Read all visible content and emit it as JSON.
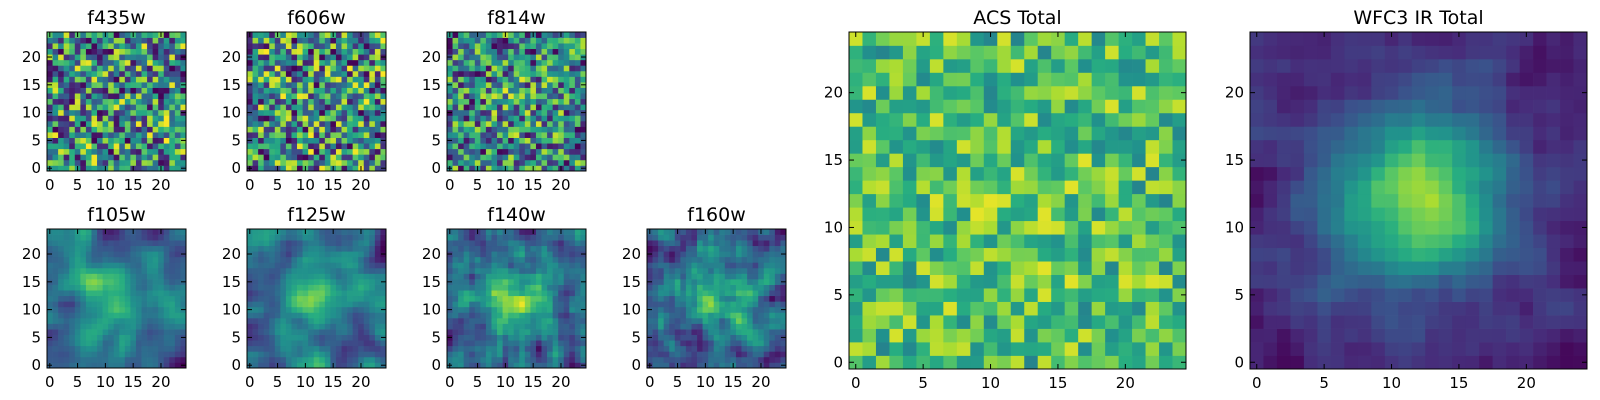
{
  "chart_data": [
    {
      "type": "heatmap",
      "title": "f435w",
      "colormap": "viridis",
      "grid_size": [
        25,
        25
      ],
      "xticks": [
        0,
        5,
        10,
        15,
        20
      ],
      "yticks": [
        0,
        5,
        10,
        15,
        20
      ],
      "xlim": [
        -0.5,
        24.5
      ],
      "ylim": [
        -0.5,
        24.5
      ],
      "grid": false,
      "seed": 11,
      "smooth": 0,
      "blob": 0.0
    },
    {
      "type": "heatmap",
      "title": "f606w",
      "colormap": "viridis",
      "grid_size": [
        25,
        25
      ],
      "xticks": [
        0,
        5,
        10,
        15,
        20
      ],
      "yticks": [
        0,
        5,
        10,
        15,
        20
      ],
      "xlim": [
        -0.5,
        24.5
      ],
      "ylim": [
        -0.5,
        24.5
      ],
      "grid": false,
      "seed": 23,
      "smooth": 0,
      "blob": 0.0
    },
    {
      "type": "heatmap",
      "title": "f814w",
      "colormap": "viridis",
      "grid_size": [
        25,
        25
      ],
      "xticks": [
        0,
        5,
        10,
        15,
        20
      ],
      "yticks": [
        0,
        5,
        10,
        15,
        20
      ],
      "xlim": [
        -0.5,
        24.5
      ],
      "ylim": [
        -0.5,
        24.5
      ],
      "grid": false,
      "seed": 37,
      "smooth": 0,
      "blob": 0.1
    },
    {
      "type": "heatmap",
      "title": "f105w",
      "colormap": "viridis",
      "grid_size": [
        25,
        25
      ],
      "xticks": [
        0,
        5,
        10,
        15,
        20
      ],
      "yticks": [
        0,
        5,
        10,
        15,
        20
      ],
      "xlim": [
        -0.5,
        24.5
      ],
      "ylim": [
        -0.5,
        24.5
      ],
      "grid": false,
      "seed": 41,
      "smooth": 2,
      "blob": 0.35
    },
    {
      "type": "heatmap",
      "title": "f125w",
      "colormap": "viridis",
      "grid_size": [
        25,
        25
      ],
      "xticks": [
        0,
        5,
        10,
        15,
        20
      ],
      "yticks": [
        0,
        5,
        10,
        15,
        20
      ],
      "xlim": [
        -0.5,
        24.5
      ],
      "ylim": [
        -0.5,
        24.5
      ],
      "grid": false,
      "seed": 53,
      "smooth": 2,
      "blob": 0.3
    },
    {
      "type": "heatmap",
      "title": "f140w",
      "colormap": "viridis",
      "grid_size": [
        25,
        25
      ],
      "xticks": [
        0,
        5,
        10,
        15,
        20
      ],
      "yticks": [
        0,
        5,
        10,
        15,
        20
      ],
      "xlim": [
        -0.5,
        24.5
      ],
      "ylim": [
        -0.5,
        24.5
      ],
      "grid": false,
      "seed": 67,
      "smooth": 1,
      "blob": 0.4
    },
    {
      "type": "heatmap",
      "title": "f160w",
      "colormap": "viridis",
      "grid_size": [
        25,
        25
      ],
      "xticks": [
        0,
        5,
        10,
        15,
        20
      ],
      "yticks": [
        0,
        5,
        10,
        15,
        20
      ],
      "xlim": [
        -0.5,
        24.5
      ],
      "ylim": [
        -0.5,
        24.5
      ],
      "grid": false,
      "seed": 79,
      "smooth": 1,
      "blob": 0.4
    },
    {
      "type": "heatmap",
      "title": "ACS Total",
      "colormap": "viridis",
      "grid_size": [
        25,
        25
      ],
      "xticks": [
        0,
        5,
        10,
        15,
        20
      ],
      "yticks": [
        0,
        5,
        10,
        15,
        20
      ],
      "xlim": [
        -0.5,
        24.5
      ],
      "ylim": [
        -0.5,
        24.5
      ],
      "grid": false,
      "seed": 97,
      "smooth": 0,
      "blob": 0.1,
      "floor": 0.45
    },
    {
      "type": "heatmap",
      "title": "WFC3 IR Total",
      "colormap": "viridis",
      "grid_size": [
        25,
        25
      ],
      "xticks": [
        0,
        5,
        10,
        15,
        20
      ],
      "yticks": [
        0,
        5,
        10,
        15,
        20
      ],
      "xlim": [
        -0.5,
        24.5
      ],
      "ylim": [
        -0.5,
        24.5
      ],
      "grid": false,
      "seed": 131,
      "smooth": 1,
      "blob": 0.75
    }
  ]
}
